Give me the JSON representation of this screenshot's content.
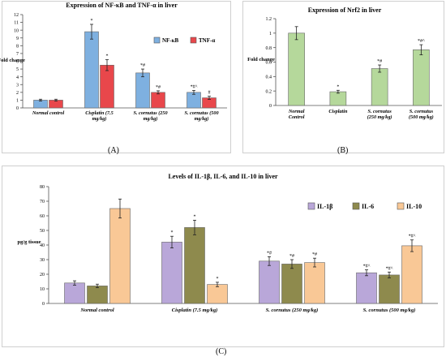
{
  "panels": [
    {
      "letter": "(A)",
      "chart_data": {
        "type": "bar",
        "title": "Expression of NF-κB and TNF-α in liver",
        "xlabel": "",
        "ylabel": "Fold change",
        "ylim": [
          0,
          12
        ],
        "yticks": [
          0,
          1,
          2,
          3,
          4,
          5,
          6,
          7,
          8,
          9,
          10,
          11,
          12
        ],
        "grid": false,
        "legend_position": "right",
        "categories": [
          "Normal control",
          "Cisplatin (7.5 mg/kg)",
          "S. cornutus (250 mg/kg)",
          "S. cornutus (500 mg/kg)"
        ],
        "series": [
          {
            "name": "NF-κB",
            "color": "#7eb0e0",
            "values": [
              1.0,
              9.8,
              4.5,
              2.0
            ],
            "errors": [
              0.12,
              0.95,
              0.5,
              0.25
            ],
            "annotations": [
              "",
              "*",
              "*#",
              "*#^"
            ]
          },
          {
            "name": "TNF-α",
            "color": "#e8474b",
            "values": [
              1.0,
              5.5,
              2.0,
              1.3
            ],
            "errors": [
              0.12,
              0.7,
              0.2,
              0.2
            ],
            "annotations": [
              "",
              "*",
              "*#",
              "#"
            ]
          }
        ]
      }
    },
    {
      "letter": "(B)",
      "chart_data": {
        "type": "bar",
        "title": "Expression of Nrf2 in liver",
        "xlabel": "",
        "ylabel": "Fold change",
        "ylim": [
          0,
          1.2
        ],
        "yticks": [
          "0",
          "0.2",
          "0.4",
          "0.6",
          "0.8",
          "1",
          "1.2"
        ],
        "grid": false,
        "categories": [
          "Normal Control",
          "Cisplatin",
          "S. cornutus (250 mg/kg)",
          "S. cornutus (500 mg/kg)"
        ],
        "series": [
          {
            "name": "",
            "color": "#b5d89b",
            "values": [
              1.0,
              0.19,
              0.51,
              0.77
            ],
            "errors": [
              0.09,
              0.02,
              0.05,
              0.07
            ],
            "annotations": [
              "",
              "*",
              "*#",
              "*#^"
            ]
          }
        ]
      }
    },
    {
      "letter": "(C)",
      "chart_data": {
        "type": "bar",
        "title": "Levels of IL-1β, IL-6, and IL-10 in liver",
        "xlabel": "",
        "ylabel": "pg/g tissue",
        "ylim": [
          0,
          80
        ],
        "yticks": [
          0,
          10,
          20,
          30,
          40,
          50,
          60,
          70,
          80
        ],
        "grid": false,
        "legend_position": "top-right",
        "categories": [
          "Normal control",
          "Cisplatin (7.5 mg/kg)",
          "S. cornutus (250 mg/kg)",
          "S. cornutus (500 mg/kg)"
        ],
        "series": [
          {
            "name": "IL-1β",
            "color": "#b9a7d9",
            "values": [
              14,
              42,
              29,
              21
            ],
            "errors": [
              1.5,
              4,
              3,
              2
            ],
            "annotations": [
              "",
              "*",
              "*#",
              "*#^"
            ]
          },
          {
            "name": "IL-6",
            "color": "#8e8a4d",
            "values": [
              12,
              52,
              27,
              19.5
            ],
            "errors": [
              1.2,
              5,
              3,
              2
            ],
            "annotations": [
              "",
              "*",
              "*#",
              "*#^"
            ]
          },
          {
            "name": "IL-10",
            "color": "#f9c896",
            "values": [
              65,
              13,
              28,
              39.5
            ],
            "errors": [
              6.5,
              1.5,
              3,
              4
            ],
            "annotations": [
              "",
              "*",
              "*#",
              "*#^"
            ]
          }
        ]
      }
    }
  ]
}
